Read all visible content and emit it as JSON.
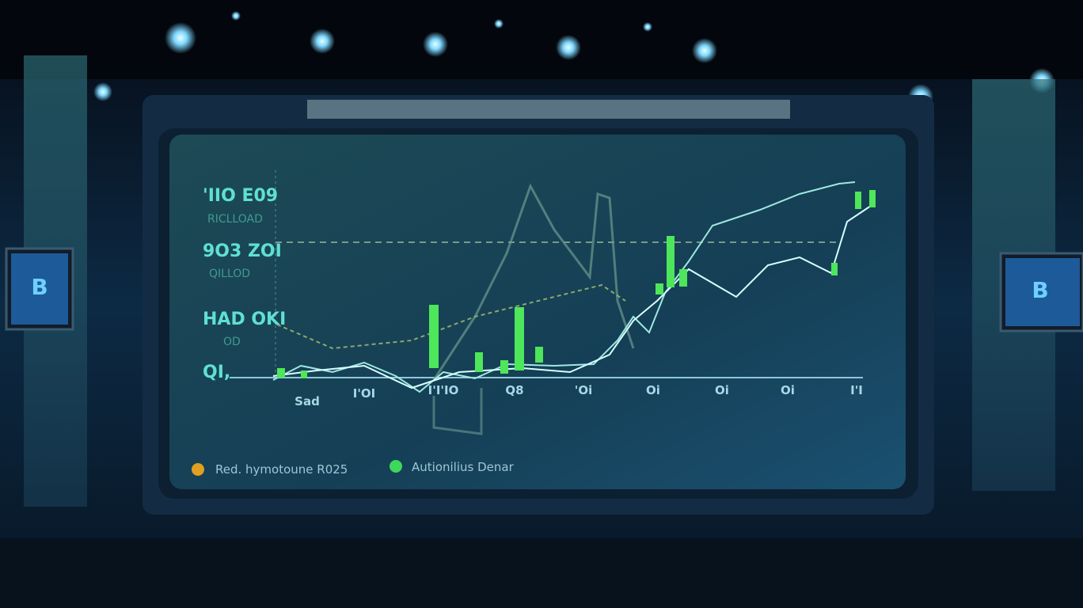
{
  "screen": {
    "y_labels": [
      "'IIO E09",
      "9O3 ZOI",
      "HAD OKI",
      "QI,"
    ],
    "y_sublabels": [
      "RICLLOAD",
      "QILLOD",
      "OD"
    ],
    "x_labels": [
      "Sad",
      "I'OI",
      "I'I'IO",
      "Q8",
      "'Oi",
      "Oi",
      "Oi",
      "Oi",
      "I'I"
    ],
    "legend": [
      "Red. hymotoune R025",
      "Autionilius Denar"
    ]
  },
  "side_monitors": [
    "B",
    "B"
  ]
}
